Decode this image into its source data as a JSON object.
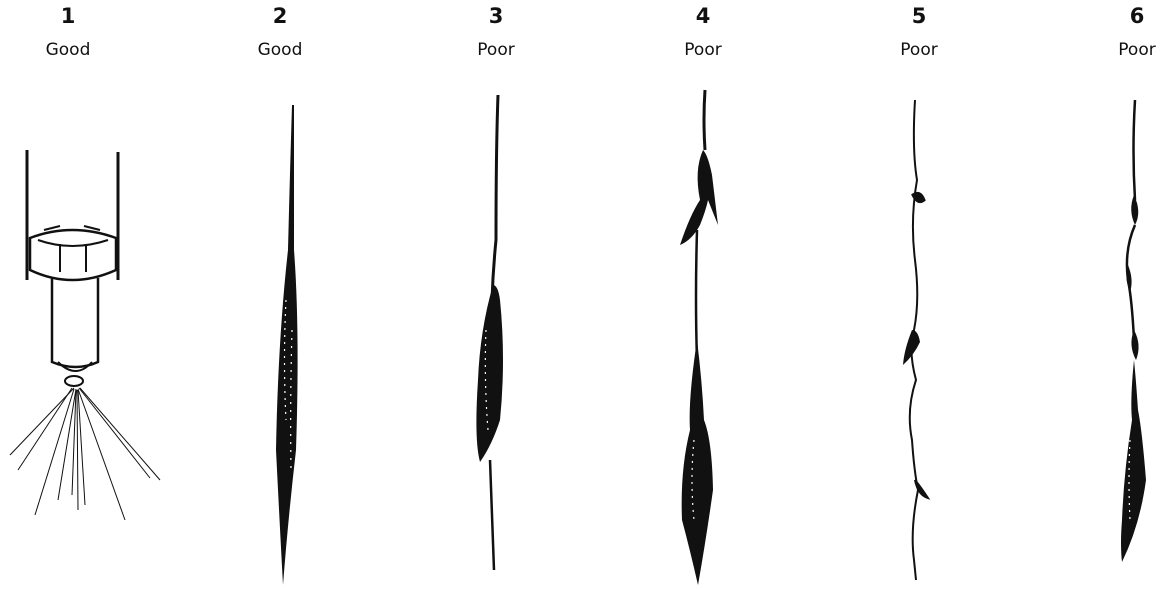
{
  "panels": [
    {
      "number": "1",
      "rating": "Good",
      "depiction": "injector nozzle with spray cone"
    },
    {
      "number": "2",
      "rating": "Good",
      "depiction": "even dense spray column"
    },
    {
      "number": "3",
      "rating": "Poor",
      "depiction": "spray concentrated in middle section"
    },
    {
      "number": "4",
      "rating": "Poor",
      "depiction": "forked streams and lumpy spray"
    },
    {
      "number": "5",
      "rating": "Poor",
      "depiction": "thin wavy stream with blobs"
    },
    {
      "number": "6",
      "rating": "Poor",
      "depiction": "stream with blobs and dense lower section"
    }
  ],
  "colors": {
    "ink": "#111111",
    "background": "#ffffff"
  }
}
